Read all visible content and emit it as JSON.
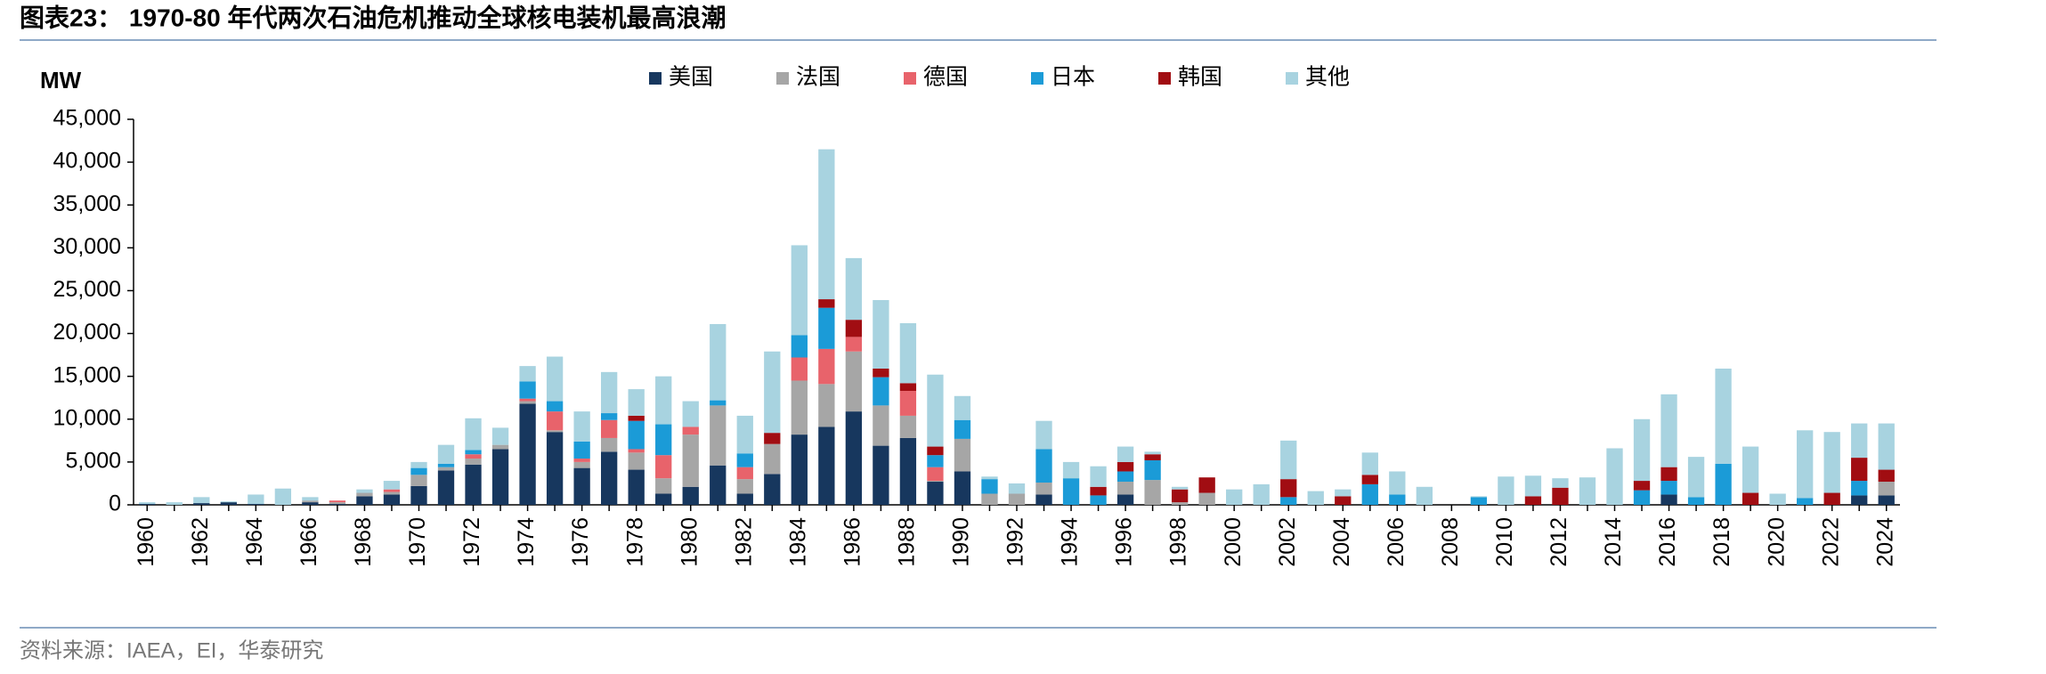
{
  "chart_data": {
    "type": "stacked_bar",
    "title": "图表23： 1970-80 年代两次石油危机推动全球核电装机最高浪潮",
    "y_label": "MW",
    "source": "资料来源：IAEA，EI，华泰研究",
    "categories": [
      "1960",
      null,
      "1962",
      null,
      "1964",
      null,
      "1966",
      null,
      "1968",
      null,
      "1970",
      null,
      "1972",
      null,
      "1974",
      null,
      "1976",
      null,
      "1978",
      null,
      "1980",
      null,
      "1982",
      null,
      "1984",
      null,
      "1986",
      null,
      "1988",
      null,
      "1990",
      null,
      "1992",
      null,
      "1994",
      null,
      "1996",
      null,
      "1998",
      null,
      "2000",
      null,
      "2002",
      null,
      "2004",
      null,
      "2006",
      null,
      "2008",
      null,
      "2010",
      null,
      "2012",
      null,
      "2014",
      null,
      "2016",
      null,
      "2018",
      null,
      "2020",
      null,
      "2022",
      null,
      "2024"
    ],
    "series": [
      {
        "name": "美国",
        "color": "#17375e",
        "values": [
          100,
          0,
          200,
          300,
          100,
          0,
          300,
          100,
          1000,
          1200,
          2200,
          4000,
          4700,
          6500,
          11800,
          8500,
          4300,
          6200,
          4100,
          1300,
          2100,
          4600,
          1300,
          3600,
          8200,
          9100,
          10900,
          6900,
          7800,
          2700,
          3900,
          0,
          0,
          1200,
          0,
          0,
          1200,
          0,
          0,
          0,
          0,
          0,
          0,
          0,
          0,
          0,
          0,
          0,
          0,
          0,
          0,
          0,
          0,
          0,
          0,
          0,
          1200,
          0,
          0,
          0,
          0,
          0,
          0,
          1100,
          1100
        ]
      },
      {
        "name": "法国",
        "color": "#a6a6a6",
        "values": [
          0,
          0,
          0,
          0,
          0,
          0,
          200,
          200,
          400,
          300,
          1300,
          400,
          700,
          500,
          300,
          200,
          700,
          1600,
          2000,
          1800,
          6100,
          7000,
          1700,
          3500,
          6300,
          5000,
          7000,
          4700,
          2600,
          100,
          3800,
          1300,
          1300,
          1400,
          0,
          0,
          1500,
          2900,
          300,
          1400,
          0,
          0,
          0,
          0,
          0,
          0,
          0,
          0,
          0,
          0,
          0,
          0,
          0,
          0,
          0,
          0,
          0,
          0,
          0,
          0,
          0,
          0,
          0,
          0,
          1600
        ]
      },
      {
        "name": "德国",
        "color": "#e8636b",
        "values": [
          0,
          0,
          0,
          0,
          0,
          0,
          0,
          200,
          0,
          300,
          0,
          0,
          500,
          0,
          300,
          2200,
          400,
          2100,
          400,
          2700,
          900,
          0,
          1400,
          0,
          2700,
          4100,
          1700,
          0,
          2900,
          1600,
          0,
          0,
          0,
          0,
          0,
          0,
          0,
          0,
          0,
          0,
          0,
          0,
          0,
          0,
          0,
          0,
          0,
          0,
          0,
          0,
          0,
          0,
          0,
          0,
          0,
          0,
          0,
          0,
          0,
          0,
          0,
          0,
          0,
          0,
          0
        ]
      },
      {
        "name": "日本",
        "color": "#1b9bd7",
        "values": [
          0,
          0,
          0,
          0,
          0,
          0,
          0,
          0,
          0,
          0,
          800,
          400,
          500,
          0,
          2000,
          1200,
          2000,
          800,
          3300,
          3600,
          0,
          600,
          1600,
          0,
          2600,
          4800,
          0,
          3300,
          0,
          1400,
          2200,
          1700,
          0,
          3900,
          3100,
          1100,
          1200,
          2300,
          0,
          0,
          0,
          0,
          900,
          0,
          0,
          2400,
          1200,
          0,
          0,
          900,
          0,
          0,
          0,
          0,
          0,
          1700,
          1600,
          900,
          4800,
          0,
          0,
          800,
          0,
          1700,
          0
        ]
      },
      {
        "name": "韩国",
        "color": "#a10d12",
        "values": [
          0,
          0,
          0,
          0,
          0,
          0,
          0,
          0,
          0,
          0,
          0,
          0,
          0,
          0,
          0,
          0,
          0,
          0,
          600,
          0,
          0,
          0,
          0,
          1300,
          0,
          1000,
          2000,
          1000,
          900,
          1000,
          0,
          0,
          0,
          0,
          0,
          1000,
          1100,
          700,
          1500,
          1800,
          0,
          0,
          2100,
          0,
          1000,
          1100,
          0,
          0,
          0,
          0,
          0,
          1000,
          2000,
          0,
          0,
          1100,
          1600,
          0,
          0,
          1400,
          0,
          0,
          1400,
          2700,
          1400
        ]
      },
      {
        "name": "其他",
        "color": "#a8d3e0",
        "values": [
          200,
          300,
          700,
          100,
          1100,
          1900,
          400,
          0,
          400,
          1000,
          700,
          2200,
          3700,
          2000,
          1800,
          5200,
          3500,
          4800,
          3100,
          5600,
          3000,
          8900,
          4400,
          9500,
          10500,
          17500,
          7200,
          8000,
          7000,
          8400,
          2800,
          300,
          1200,
          3300,
          1900,
          2400,
          1800,
          300,
          300,
          0,
          1800,
          2400,
          4500,
          1600,
          800,
          2600,
          2700,
          2100,
          0,
          100,
          3300,
          2400,
          1100,
          3200,
          6600,
          7200,
          8500,
          4700,
          11100,
          5400,
          1300,
          7900,
          7100,
          4000,
          5400
        ]
      }
    ],
    "ylim": [
      0,
      45000
    ],
    "yticks": [
      0,
      {
        "value": 5000,
        "label": "5,000"
      },
      {
        "value": 10000,
        "label": "10,000"
      },
      {
        "value": 15000,
        "label": "15,000"
      },
      {
        "value": 20000,
        "label": "20,000"
      },
      {
        "value": 25000,
        "label": "25,000"
      },
      {
        "value": 30000,
        "label": "30,000"
      },
      {
        "value": 35000,
        "label": "35,000"
      },
      {
        "value": 40000,
        "label": "40,000"
      },
      {
        "value": 45000,
        "label": "45,000"
      }
    ]
  }
}
